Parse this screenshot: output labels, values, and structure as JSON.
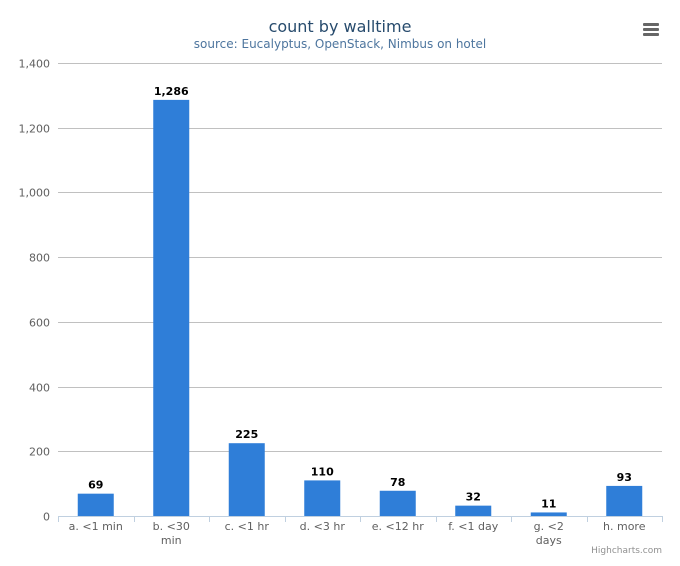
{
  "chart_data": {
    "type": "bar",
    "title": "count by walltime",
    "subtitle": "source: Eucalyptus, OpenStack, Nimbus on hotel",
    "categories": [
      "a. <1 min",
      "b. <30 min",
      "c. <1 hr",
      "d. <3 hr",
      "e. <12 hr",
      "f. <1 day",
      "g. <2 days",
      "h. more"
    ],
    "category_lines": [
      [
        "a. <1 min"
      ],
      [
        "b. <30",
        "min"
      ],
      [
        "c. <1 hr"
      ],
      [
        "d. <3 hr"
      ],
      [
        "e. <12 hr"
      ],
      [
        "f. <1 day"
      ],
      [
        "g. <2",
        "days"
      ],
      [
        "h. more"
      ]
    ],
    "values": [
      69,
      1286,
      225,
      110,
      78,
      32,
      11,
      93
    ],
    "value_labels": [
      "69",
      "1,286",
      "225",
      "110",
      "78",
      "32",
      "11",
      "93"
    ],
    "ylim": [
      0,
      1400
    ],
    "yticks": [
      0,
      200,
      400,
      600,
      800,
      1000,
      1200,
      1400
    ],
    "ytick_labels": [
      "0",
      "200",
      "400",
      "600",
      "800",
      "1,000",
      "1,200",
      "1,400"
    ],
    "grid": true,
    "xlabel": "",
    "ylabel": "",
    "bar_color": "#2f7ed8",
    "credits": "Highcharts.com"
  },
  "menu": {
    "icon": "menu-icon"
  }
}
